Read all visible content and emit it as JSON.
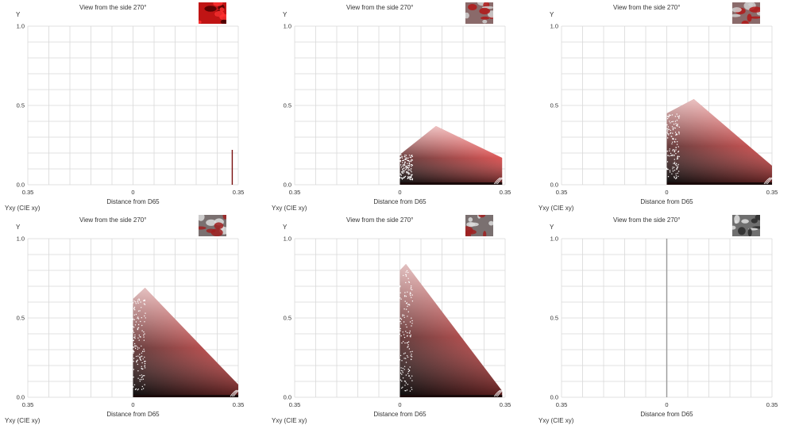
{
  "colors": {
    "red": "#e81818",
    "dark_red": "#7a0f0f",
    "grid": "#d9d9d9",
    "axis_text": "#333333"
  },
  "chart_data": [
    {
      "type": "scatter",
      "title": "View from the side 270°",
      "ylabel": "Y",
      "xlabel": "Distance from D65",
      "sublabel": "Yxy (CIE xy)",
      "x_ticks": [
        "0.35",
        "0",
        "0.35"
      ],
      "y_ticks": [
        "1.0",
        "0.5",
        "0.0"
      ],
      "xlim": [
        -0.35,
        0.35
      ],
      "ylim": [
        0,
        1
      ],
      "grid": true,
      "thumbnail": "red",
      "shape": "line",
      "series": [
        {
          "x": [
            0.33,
            0.33
          ],
          "y": [
            0.0,
            0.22
          ]
        }
      ]
    },
    {
      "type": "scatter",
      "title": "View from the side 270°",
      "ylabel": "Y",
      "xlabel": "Distance from D65",
      "sublabel": "Yxy (CIE xy)",
      "x_ticks": [
        "0.35",
        "0",
        "0.35"
      ],
      "y_ticks": [
        "1.0",
        "0.5",
        "0.0"
      ],
      "xlim": [
        -0.35,
        0.35
      ],
      "ylim": [
        0,
        1
      ],
      "grid": true,
      "thumbnail": "mixed",
      "shape": "cloud",
      "series": [
        {
          "x": [
            0.0,
            0.0,
            0.12,
            0.34,
            0.34,
            0.0
          ],
          "y": [
            0.0,
            0.19,
            0.37,
            0.17,
            0.0,
            0.0
          ]
        }
      ]
    },
    {
      "type": "scatter",
      "title": "View from the side 270°",
      "ylabel": "Y",
      "xlabel": "Distance from D65",
      "sublabel": "Yxy (CIE xy)",
      "x_ticks": [
        "0.35",
        "0",
        "0.35"
      ],
      "y_ticks": [
        "1.0",
        "0.5",
        "0.0"
      ],
      "xlim": [
        -0.35,
        0.35
      ],
      "ylim": [
        0,
        1
      ],
      "grid": true,
      "thumbnail": "mixed",
      "shape": "cloud",
      "series": [
        {
          "x": [
            0.0,
            0.0,
            0.09,
            0.35,
            0.35,
            0.0
          ],
          "y": [
            0.0,
            0.45,
            0.54,
            0.12,
            0.0,
            0.0
          ]
        }
      ]
    },
    {
      "type": "scatter",
      "title": "View from the side 270°",
      "ylabel": "Y",
      "xlabel": "Distance from D65",
      "sublabel": "Yxy (CIE xy)",
      "x_ticks": [
        "0.35",
        "0",
        "0.35"
      ],
      "y_ticks": [
        "1.0",
        "0.5",
        "0.0"
      ],
      "xlim": [
        -0.35,
        0.35
      ],
      "ylim": [
        0,
        1
      ],
      "grid": true,
      "thumbnail": "gray-red",
      "shape": "cloud",
      "series": [
        {
          "x": [
            0.0,
            0.0,
            0.04,
            0.35,
            0.35,
            0.0
          ],
          "y": [
            0.0,
            0.62,
            0.69,
            0.08,
            0.0,
            0.0
          ]
        }
      ]
    },
    {
      "type": "scatter",
      "title": "View from the side 270°",
      "ylabel": "Y",
      "xlabel": "Distance from D65",
      "sublabel": "Yxy (CIE xy)",
      "x_ticks": [
        "0.35",
        "0",
        "0.35"
      ],
      "y_ticks": [
        "1.0",
        "0.5",
        "0.0"
      ],
      "xlim": [
        -0.35,
        0.35
      ],
      "ylim": [
        0,
        1
      ],
      "grid": true,
      "thumbnail": "gray-red",
      "shape": "cloud",
      "series": [
        {
          "x": [
            0.0,
            0.0,
            0.02,
            0.34,
            0.34,
            0.0
          ],
          "y": [
            0.0,
            0.8,
            0.84,
            0.04,
            0.0,
            0.0
          ]
        }
      ]
    },
    {
      "type": "scatter",
      "title": "View from the side 270°",
      "ylabel": "Y",
      "xlabel": "Distance from D65",
      "sublabel": "Yxy (CIE xy)",
      "x_ticks": [
        "0.35",
        "0",
        "0.35"
      ],
      "y_ticks": [
        "1.0",
        "0.5",
        "0.0"
      ],
      "xlim": [
        -0.35,
        0.35
      ],
      "ylim": [
        0,
        1
      ],
      "grid": true,
      "thumbnail": "gray",
      "shape": "line",
      "series": [
        {
          "x": [
            0.0,
            0.0
          ],
          "y": [
            0.0,
            1.0
          ]
        }
      ]
    }
  ]
}
